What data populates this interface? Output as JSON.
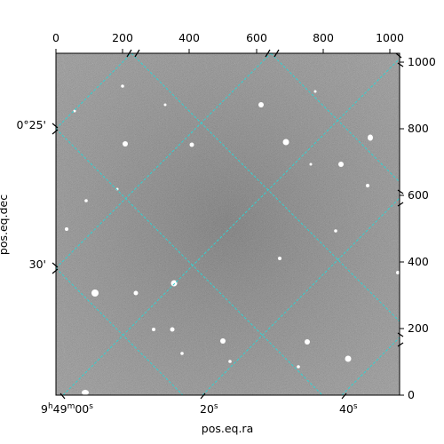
{
  "figure": {
    "xlabel": "pos.eq.ra",
    "ylabel": "pos.eq.dec",
    "grid_color": "#31d2d2",
    "frame_color": "#000000"
  },
  "pixel_axes": {
    "top_ticks": [
      "0",
      "200",
      "400",
      "600",
      "800",
      "1000"
    ],
    "top_tick_values": [
      0,
      200,
      400,
      600,
      800,
      1000
    ],
    "right_ticks": [
      "0",
      "200",
      "400",
      "600",
      "800",
      "1000"
    ],
    "right_tick_values": [
      0,
      200,
      400,
      600,
      800,
      1000
    ],
    "x_range": [
      0,
      1035
    ],
    "y_range": [
      0,
      1035
    ]
  },
  "world_axes": {
    "ra_ticks": [
      {
        "prefix": "9",
        "h": "h",
        "mid": "49",
        "m": "m",
        "sec": "00",
        "s": "s"
      },
      {
        "prefix": "",
        "h": "",
        "mid": "",
        "m": "",
        "sec": "20",
        "s": "s"
      },
      {
        "prefix": "",
        "h": "",
        "mid": "",
        "m": "",
        "sec": "40",
        "s": "s"
      }
    ],
    "dec_ticks": [
      "0°25'",
      "30'"
    ]
  }
}
